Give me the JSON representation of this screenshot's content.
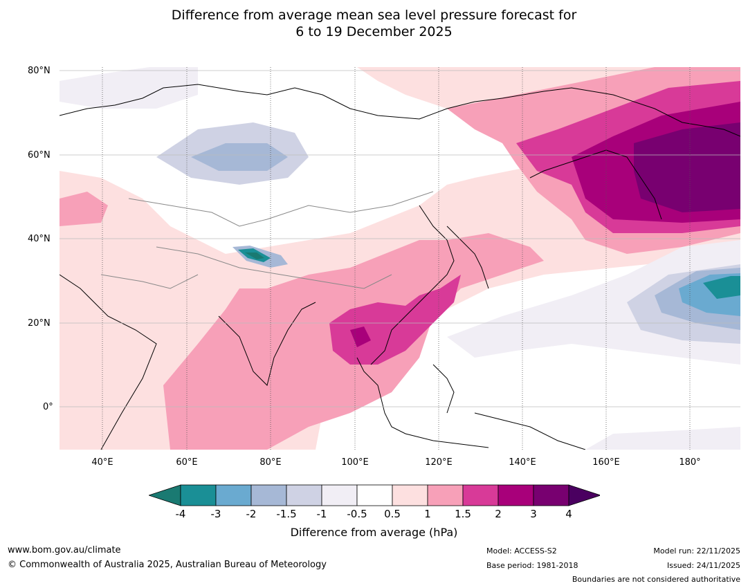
{
  "title": {
    "line1": "Difference from average mean sea level pressure forecast for",
    "line2": "6 to 19 December 2025"
  },
  "latitude_labels": [
    "80°N",
    "60°N",
    "40°N",
    "20°N",
    "0°"
  ],
  "longitude_labels": [
    "40°E",
    "60°E",
    "80°E",
    "100°E",
    "120°E",
    "140°E",
    "160°E",
    "180°"
  ],
  "colorbar": {
    "title": "Difference from average (hPa)",
    "tick_labels": [
      "-4",
      "-3",
      "-2",
      "-1.5",
      "-1",
      "-0.5",
      "0.5",
      "1",
      "1.5",
      "2",
      "3",
      "4"
    ],
    "colors": [
      "#1a7a72",
      "#1a8f96",
      "#6aaad0",
      "#a6b8d6",
      "#cfd2e4",
      "#f1eef5",
      "#ffffff",
      "#fde0e0",
      "#f7a0b8",
      "#d83a98",
      "#a8007a",
      "#780070",
      "#4a0060"
    ]
  },
  "footer": {
    "website": "www.bom.gov.au/climate",
    "copyright": "© Commonwealth of Australia 2025, Australian Bureau of Meteorology",
    "model": "Model: ACCESS-S2",
    "base_period": "Base period: 1981-2018",
    "model_run": "Model run: 22/11/2025",
    "issued": "Issued: 24/11/2025",
    "disclaimer": "Boundaries are not considered authoritative"
  }
}
